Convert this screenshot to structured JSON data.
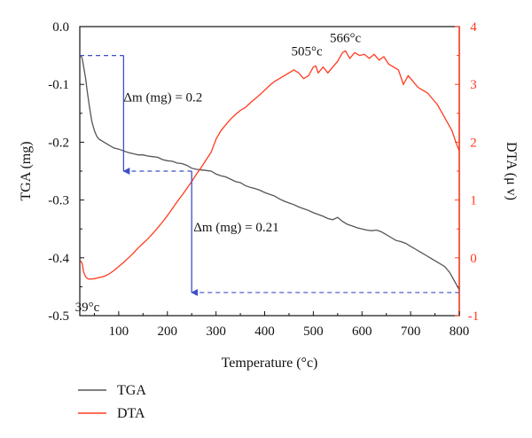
{
  "chart_data": {
    "type": "line",
    "xlabel": "Temperature (°c)",
    "ylabel_left": "TGA (mg)",
    "ylabel_right": "DTA (μ v)",
    "xlim": [
      20,
      800
    ],
    "ylim_left": [
      -0.5,
      0.0
    ],
    "ylim_right": [
      -1,
      4
    ],
    "x_ticks": [
      100,
      200,
      300,
      400,
      500,
      600,
      700,
      800
    ],
    "y_ticks_left": [
      0.0,
      -0.1,
      -0.2,
      -0.3,
      -0.4,
      -0.5
    ],
    "y_ticks_right": [
      4,
      3,
      2,
      1,
      0,
      -1
    ],
    "x_tick_labels": [
      "100",
      "200",
      "300",
      "400",
      "500",
      "600",
      "700",
      "800"
    ],
    "y_tick_labels_left": [
      "0.0",
      "-0.1",
      "-0.2",
      "-0.3",
      "-0.4",
      "-0.5"
    ],
    "y_tick_labels_right": [
      "4",
      "3",
      "2",
      "1",
      "0",
      "-1"
    ],
    "grid": false,
    "legend_position": "bottom-left",
    "colors": {
      "TGA": "#555555",
      "DTA": "#ff3b1f",
      "annotation": "#3b50c8",
      "right_axis": "#ff3b1f"
    },
    "series": [
      {
        "name": "TGA",
        "axis": "left",
        "x": [
          22,
          25,
          28,
          32,
          35,
          40,
          45,
          50,
          55,
          60,
          70,
          80,
          90,
          100,
          110,
          120,
          130,
          140,
          150,
          160,
          170,
          180,
          190,
          200,
          210,
          220,
          230,
          240,
          250,
          260,
          270,
          280,
          290,
          300,
          310,
          320,
          330,
          340,
          350,
          360,
          370,
          380,
          390,
          400,
          410,
          420,
          430,
          440,
          450,
          460,
          470,
          480,
          490,
          500,
          510,
          520,
          530,
          540,
          550,
          560,
          570,
          580,
          590,
          600,
          610,
          620,
          630,
          640,
          650,
          660,
          670,
          680,
          690,
          700,
          710,
          720,
          730,
          740,
          750,
          760,
          770,
          780,
          790,
          800
        ],
        "y": [
          -0.05,
          -0.055,
          -0.07,
          -0.09,
          -0.11,
          -0.14,
          -0.165,
          -0.18,
          -0.19,
          -0.195,
          -0.2,
          -0.205,
          -0.21,
          -0.212,
          -0.215,
          -0.218,
          -0.22,
          -0.222,
          -0.222,
          -0.224,
          -0.225,
          -0.226,
          -0.23,
          -0.232,
          -0.233,
          -0.236,
          -0.237,
          -0.24,
          -0.245,
          -0.247,
          -0.248,
          -0.249,
          -0.25,
          -0.255,
          -0.258,
          -0.26,
          -0.264,
          -0.268,
          -0.27,
          -0.275,
          -0.278,
          -0.28,
          -0.283,
          -0.287,
          -0.29,
          -0.293,
          -0.298,
          -0.302,
          -0.305,
          -0.308,
          -0.312,
          -0.315,
          -0.318,
          -0.322,
          -0.325,
          -0.328,
          -0.332,
          -0.334,
          -0.33,
          -0.337,
          -0.342,
          -0.345,
          -0.348,
          -0.35,
          -0.352,
          -0.353,
          -0.352,
          -0.355,
          -0.36,
          -0.365,
          -0.37,
          -0.372,
          -0.375,
          -0.38,
          -0.385,
          -0.39,
          -0.395,
          -0.4,
          -0.405,
          -0.41,
          -0.415,
          -0.425,
          -0.44,
          -0.455
        ]
      },
      {
        "name": "DTA",
        "axis": "right",
        "x": [
          22,
          25,
          28,
          32,
          36,
          40,
          50,
          60,
          70,
          80,
          90,
          100,
          110,
          120,
          130,
          140,
          150,
          160,
          170,
          180,
          190,
          200,
          210,
          220,
          230,
          240,
          250,
          260,
          270,
          280,
          290,
          300,
          310,
          320,
          330,
          340,
          350,
          360,
          370,
          380,
          390,
          400,
          410,
          420,
          430,
          440,
          450,
          460,
          470,
          480,
          490,
          500,
          505,
          510,
          520,
          530,
          540,
          550,
          560,
          566,
          575,
          585,
          595,
          605,
          615,
          625,
          635,
          645,
          655,
          665,
          675,
          685,
          695,
          705,
          715,
          725,
          735,
          745,
          755,
          765,
          775,
          785,
          795,
          800
        ],
        "y": [
          -0.05,
          -0.1,
          -0.25,
          -0.33,
          -0.36,
          -0.37,
          -0.36,
          -0.34,
          -0.32,
          -0.28,
          -0.22,
          -0.15,
          -0.08,
          0.0,
          0.08,
          0.17,
          0.25,
          0.33,
          0.42,
          0.52,
          0.62,
          0.73,
          0.85,
          0.97,
          1.08,
          1.2,
          1.32,
          1.45,
          1.57,
          1.7,
          1.83,
          2.05,
          2.2,
          2.3,
          2.4,
          2.48,
          2.55,
          2.6,
          2.68,
          2.75,
          2.82,
          2.9,
          2.98,
          3.05,
          3.1,
          3.15,
          3.2,
          3.25,
          3.2,
          3.1,
          3.15,
          3.3,
          3.32,
          3.2,
          3.3,
          3.2,
          3.3,
          3.4,
          3.55,
          3.58,
          3.45,
          3.55,
          3.5,
          3.52,
          3.45,
          3.52,
          3.42,
          3.48,
          3.35,
          3.3,
          3.25,
          3.0,
          3.15,
          3.05,
          2.95,
          2.9,
          2.85,
          2.75,
          2.65,
          2.5,
          2.35,
          2.2,
          1.95,
          1.85
        ]
      }
    ],
    "annotations": [
      {
        "text": "566°c",
        "x": 566,
        "axis": "right",
        "y": 3.58
      },
      {
        "text": "505°c",
        "x": 505,
        "axis": "right",
        "y": 3.32
      },
      {
        "text": "39°c",
        "x": 39,
        "axis": "right",
        "y": -0.37
      },
      {
        "text": "Δm (mg) = 0.2",
        "x": 110,
        "axis": "left",
        "y": -0.05,
        "y_end": -0.25
      },
      {
        "text": "Δm (mg) = 0.21",
        "x": 250,
        "axis": "left",
        "y": -0.25,
        "y_end": -0.46
      }
    ]
  }
}
